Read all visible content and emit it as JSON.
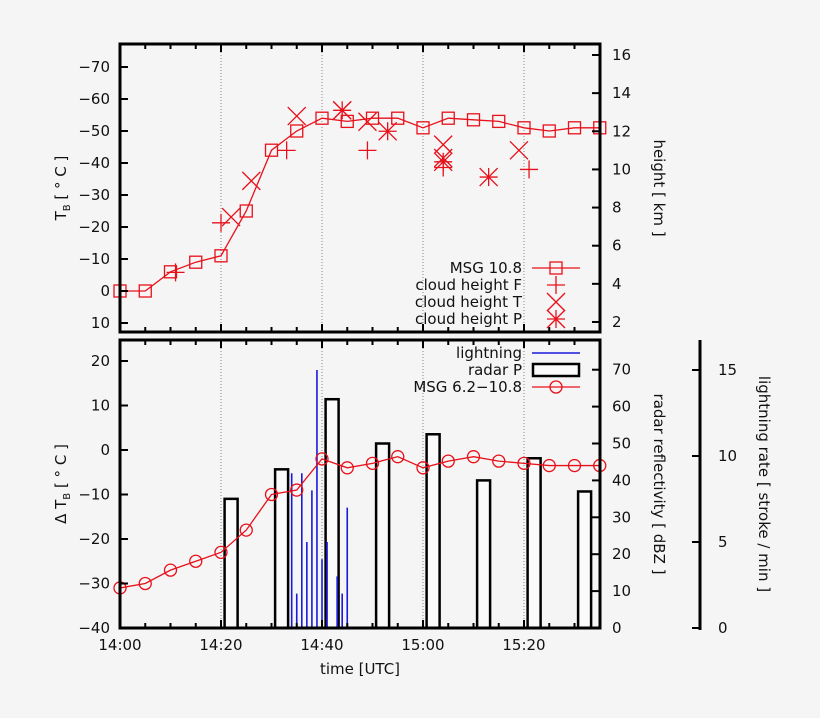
{
  "chart_data": [
    {
      "type": "line",
      "panel": "top",
      "xlabel": "",
      "ylabel": "T_B [ ° C ]",
      "ylabel_parts": {
        "main": "T",
        "sub": "B",
        "rest": "  [ ° C ]"
      },
      "y2label": "height [ km ]",
      "xlim": [
        "14:00",
        "15:35"
      ],
      "ylim": [
        10,
        -77
      ],
      "y_reversed": true,
      "y_ticks": [
        "−70",
        "−60",
        "−50",
        "−40",
        "−30",
        "−20",
        "−10",
        "0",
        "10"
      ],
      "y_tick_values": [
        -70,
        -60,
        -50,
        -40,
        -30,
        -20,
        -10,
        0,
        10
      ],
      "y2lim": [
        1.4,
        16.6
      ],
      "y2_ticks": [
        2,
        4,
        6,
        8,
        10,
        12,
        14,
        16
      ],
      "grid": "vertical dotted at 14:20, 14:40, 15:00, 15:20",
      "legend_position": "bottom-right",
      "color": "#e8101a",
      "series": [
        {
          "name": "MSG 10.8",
          "axis": "left",
          "marker": "square",
          "x": [
            "14:00",
            "14:05",
            "14:10",
            "14:15",
            "14:20",
            "14:25",
            "14:30",
            "14:35",
            "14:40",
            "14:45",
            "14:50",
            "14:55",
            "15:00",
            "15:05",
            "15:10",
            "15:15",
            "15:20",
            "15:25",
            "15:30",
            "15:35"
          ],
          "y": [
            0,
            0,
            -6,
            -9,
            -11,
            -25,
            -44,
            -50,
            -54,
            -53,
            -54,
            -54,
            -51,
            -54,
            -53.5,
            -53,
            -51,
            -50,
            -51,
            -51
          ]
        },
        {
          "name": "cloud height F",
          "axis": "right",
          "marker": "plus",
          "x": [
            "14:11",
            "14:20",
            "14:33",
            "14:49",
            "15:04",
            "15:21"
          ],
          "y": [
            4.6,
            7.2,
            11.0,
            11.0,
            10.1,
            10.0
          ]
        },
        {
          "name": "cloud height T",
          "axis": "right",
          "marker": "cross",
          "x": [
            "14:22",
            "14:26",
            "14:35",
            "14:44",
            "14:49",
            "15:04",
            "15:04",
            "15:19"
          ],
          "y": [
            7.5,
            9.4,
            12.8,
            13.1,
            12.5,
            11.3,
            10.6,
            11.0
          ]
        },
        {
          "name": "cloud height P",
          "axis": "right",
          "marker": "star",
          "x": [
            "14:44",
            "14:53",
            "15:04",
            "15:13"
          ],
          "y": [
            13.1,
            12.0,
            10.4,
            9.6
          ]
        }
      ]
    },
    {
      "type": "bar+line",
      "panel": "bottom",
      "xlabel": "time [UTC]",
      "ylabel": "Δ T_B [ ° C ]",
      "ylabel_parts": {
        "main": "Δ T",
        "sub": "B",
        "rest": "  [ ° C ]"
      },
      "y2label": "radar reflectivity [ dBZ ]",
      "y3label": "lightning rate [ stroke / min ]",
      "xlim": [
        "14:00",
        "15:35"
      ],
      "x_ticks": [
        "14:00",
        "14:20",
        "14:40",
        "15:00",
        "15:20"
      ],
      "ylim": [
        -40,
        24.7
      ],
      "y_ticks": [
        20,
        10,
        0,
        -10,
        -20,
        -30,
        -40
      ],
      "y2lim": [
        0,
        78
      ],
      "y2_ticks": [
        0,
        10,
        20,
        30,
        40,
        50,
        60,
        70
      ],
      "y3lim": [
        0,
        16.7
      ],
      "y3_ticks": [
        0,
        5,
        10,
        15
      ],
      "legend_position": "top-right",
      "series": [
        {
          "name": "lightning",
          "axis": "lightning",
          "type": "impulse",
          "color": "#1a1adc",
          "x": [
            "14:34",
            "14:35",
            "14:36",
            "14:37",
            "14:38",
            "14:39",
            "14:40",
            "14:41",
            "14:43",
            "14:44",
            "14:45"
          ],
          "y": [
            9,
            2,
            9,
            5,
            8,
            15,
            4,
            5,
            3,
            2,
            7
          ]
        },
        {
          "name": "radar P",
          "axis": "radar",
          "type": "bar",
          "color": "#000000",
          "x": [
            "14:22",
            "14:32",
            "14:42",
            "14:52",
            "15:02",
            "15:12",
            "15:22",
            "15:32"
          ],
          "y": [
            35,
            43,
            62,
            50,
            52.5,
            40,
            46,
            37
          ]
        },
        {
          "name": "MSG 6.2−10.8",
          "axis": "left",
          "type": "line",
          "marker": "circle",
          "color": "#e8101a",
          "x": [
            "14:00",
            "14:05",
            "14:10",
            "14:15",
            "14:20",
            "14:25",
            "14:30",
            "14:35",
            "14:40",
            "14:45",
            "14:50",
            "14:55",
            "15:00",
            "15:05",
            "15:10",
            "15:15",
            "15:20",
            "15:25",
            "15:30",
            "15:35"
          ],
          "y": [
            -31,
            -30,
            -27,
            -25,
            -23,
            -18,
            -10,
            -9,
            -2,
            -4,
            -3,
            -1.5,
            -4,
            -2.5,
            -1.5,
            -2.5,
            -3,
            -3.5,
            -3.5,
            -3.5
          ]
        }
      ]
    }
  ]
}
